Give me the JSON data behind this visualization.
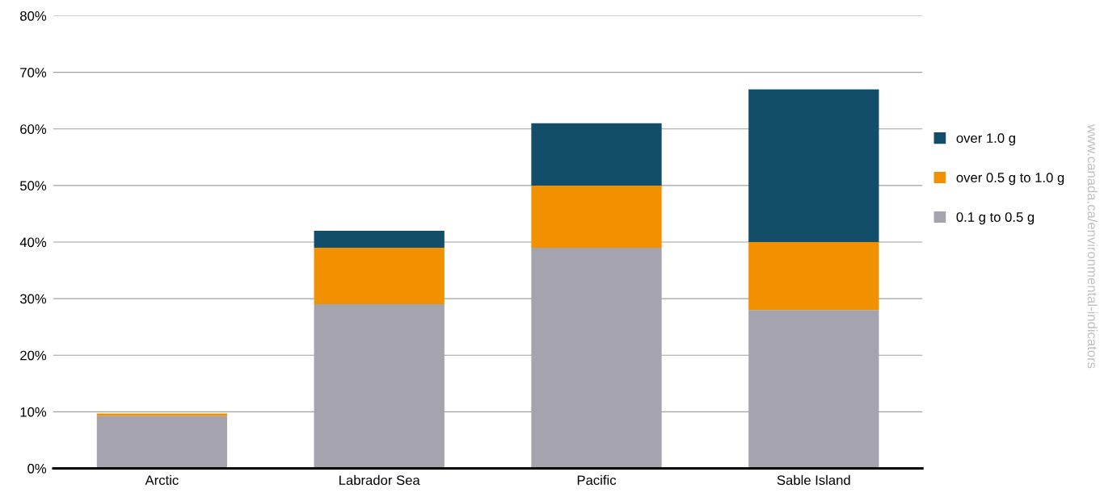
{
  "chart_data": {
    "type": "bar",
    "stacked": true,
    "categories": [
      "Arctic",
      "Labrador Sea",
      "Pacific",
      "Sable Island"
    ],
    "series": [
      {
        "name": "0.1 g to 0.5 g",
        "color": "#a5a3ae",
        "values": [
          9.3,
          29,
          39,
          28
        ]
      },
      {
        "name": "over 0.5 g to 1.0 g",
        "color": "#f29100",
        "values": [
          0.4,
          10,
          11,
          12
        ]
      },
      {
        "name": "over 1.0 g",
        "color": "#124d6a",
        "values": [
          0,
          3,
          11,
          27
        ]
      }
    ],
    "ylim": [
      0,
      80
    ],
    "yticks": [
      {
        "value": 0,
        "label": "0%"
      },
      {
        "value": 10,
        "label": "10%"
      },
      {
        "value": 20,
        "label": "20%"
      },
      {
        "value": 30,
        "label": "30%"
      },
      {
        "value": 40,
        "label": "40%"
      },
      {
        "value": 50,
        "label": "50%"
      },
      {
        "value": 60,
        "label": "60%"
      },
      {
        "value": 70,
        "label": "70%"
      },
      {
        "value": 80,
        "label": "80%"
      }
    ],
    "grid": "y",
    "legend": "right",
    "annotations": [
      "www.canada.ca/environmental-indicators"
    ]
  }
}
